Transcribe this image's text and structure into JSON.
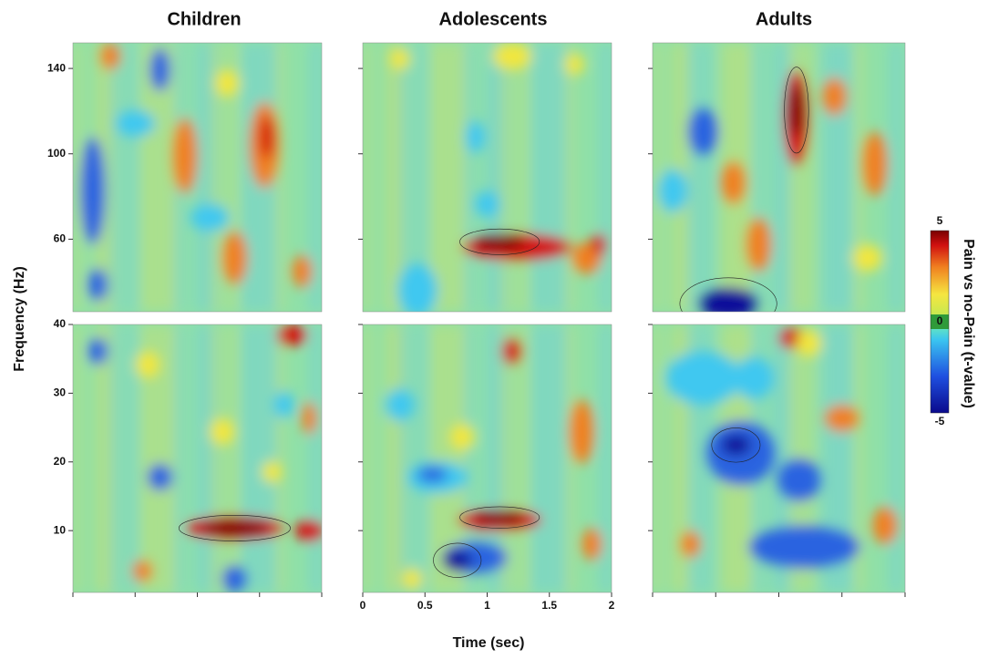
{
  "chart_data": {
    "type": "heatmap",
    "panel_titles": [
      "Children",
      "Adolescents",
      "Adults"
    ],
    "ylabel": "Frequency (Hz)",
    "xlabel": "Time (sec)",
    "xlim": [
      0,
      2
    ],
    "xticks": [
      0,
      0.5,
      1,
      1.5,
      2
    ],
    "ylim_high": [
      26,
      152
    ],
    "yticks_high": [
      60,
      100,
      140
    ],
    "ylim_low": [
      1,
      40
    ],
    "yticks_low": [
      10,
      20,
      30,
      40
    ],
    "colorbar_label": "Pain vs no-Pain (t-value)",
    "clim": [
      -5,
      5
    ],
    "cticks": [
      -5,
      0,
      5
    ]
  }
}
